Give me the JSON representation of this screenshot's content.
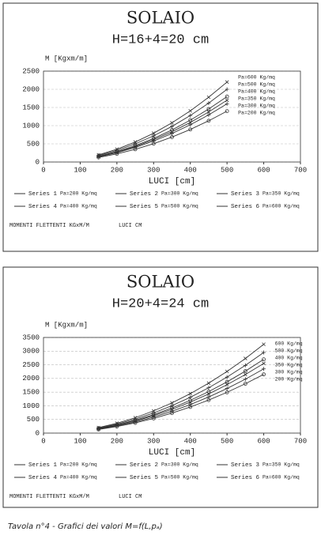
{
  "chart_data": [
    {
      "type": "line",
      "title": "SOLAIO",
      "subtitle": "H=16+4=20 cm",
      "y_label": "M [Kgxm/m]",
      "x_label": "LUCI [cm]",
      "footer_left": "MOMENTI FLETTENTI KGxM/M",
      "footer_right": "LUCI CM",
      "x": [
        150,
        200,
        250,
        300,
        350,
        400,
        450,
        500
      ],
      "xlim": [
        0,
        700
      ],
      "xticks": [
        0,
        100,
        200,
        300,
        400,
        500,
        600,
        700
      ],
      "ylim": [
        0,
        2500
      ],
      "yticks": [
        0,
        500,
        1000,
        1500,
        2000,
        2500
      ],
      "grid": true,
      "series": [
        {
          "name": "Series 1",
          "legend_label": "Pa=200 Kg/mq",
          "end_label": "Pa=200 Kg/mq",
          "color": "#333333",
          "values": [
            126,
            224,
            350,
            504,
            686,
            896,
            1134,
            1400
          ]
        },
        {
          "name": "Series 2",
          "legend_label": "Pa=300 Kg/mq",
          "end_label": "Pa=300 Kg/mq",
          "color": "#333333",
          "values": [
            144,
            256,
            400,
            576,
            784,
            1024,
            1296,
            1600
          ]
        },
        {
          "name": "Series 3",
          "legend_label": "Pa=350 Kg/mq",
          "end_label": "Pa=350 Kg/mq",
          "color": "#333333",
          "values": [
            153,
            272,
            425,
            612,
            833,
            1088,
            1377,
            1700
          ]
        },
        {
          "name": "Series 4",
          "legend_label": "Pa=400 Kg/mq",
          "end_label": "Pa=400 Kg/mq",
          "color": "#333333",
          "values": [
            162,
            288,
            450,
            648,
            882,
            1152,
            1458,
            1800
          ]
        },
        {
          "name": "Series 5",
          "legend_label": "Pa=500 Kg/mq",
          "end_label": "Pa=500 Kg/mq",
          "color": "#333333",
          "values": [
            180,
            320,
            500,
            720,
            980,
            1280,
            1620,
            2000
          ]
        },
        {
          "name": "Series 6",
          "legend_label": "Pa=600 Kg/mq",
          "end_label": "Pa=600 Kg/mq",
          "color": "#333333",
          "values": [
            198,
            352,
            550,
            792,
            1078,
            1408,
            1782,
            2200
          ]
        }
      ]
    },
    {
      "type": "line",
      "title": "SOLAIO",
      "subtitle": "H=20+4=24 cm",
      "y_label": "M [Kgxm/m]",
      "x_label": "LUCI [cm]",
      "footer_left": "MOMENTI FLETTENTI KGxM/M",
      "footer_right": "LUCI CM",
      "x": [
        150,
        200,
        250,
        300,
        350,
        400,
        450,
        500,
        550,
        600
      ],
      "xlim": [
        0,
        700
      ],
      "xticks": [
        0,
        100,
        200,
        300,
        400,
        500,
        600,
        700
      ],
      "ylim": [
        0,
        3500
      ],
      "yticks": [
        0,
        500,
        1000,
        1500,
        2000,
        2500,
        3000,
        3500
      ],
      "grid": true,
      "series": [
        {
          "name": "Series 1",
          "legend_label": "Pa=200 Kg/mq",
          "end_label": "200 Kg/mq",
          "color": "#333333",
          "values": [
            134,
            239,
            373,
            538,
            732,
            956,
            1209,
            1493,
            1807,
            2150
          ]
        },
        {
          "name": "Series 2",
          "legend_label": "Pa=300 Kg/mq",
          "end_label": "300 Kg/mq",
          "color": "#333333",
          "values": [
            147,
            261,
            408,
            588,
            800,
            1044,
            1322,
            1632,
            1975,
            2350
          ]
        },
        {
          "name": "Series 3",
          "legend_label": "Pa=350 Kg/mq",
          "end_label": "350 Kg/mq",
          "color": "#333333",
          "values": [
            159,
            283,
            443,
            638,
            868,
            1133,
            1434,
            1771,
            2143,
            2550
          ]
        },
        {
          "name": "Series 4",
          "legend_label": "Pa=400 Kg/mq",
          "end_label": "400 Kg/mq",
          "color": "#333333",
          "values": [
            169,
            300,
            469,
            675,
            919,
            1200,
            1519,
            1875,
            2269,
            2700
          ]
        },
        {
          "name": "Series 5",
          "legend_label": "Pa=500 Kg/mq",
          "end_label": "500 Kg/mq",
          "color": "#333333",
          "values": [
            184,
            328,
            512,
            738,
            1004,
            1311,
            1659,
            2049,
            2479,
            2950
          ]
        },
        {
          "name": "Series 6",
          "legend_label": "Pa=600 Kg/mq",
          "end_label": "600 Kg/mq",
          "color": "#333333",
          "values": [
            203,
            361,
            564,
            813,
            1106,
            1444,
            1828,
            2257,
            2731,
            3250
          ]
        }
      ]
    }
  ],
  "caption": "Tavola n°4 - Grafici dei valori M=f(L,pₐ)"
}
